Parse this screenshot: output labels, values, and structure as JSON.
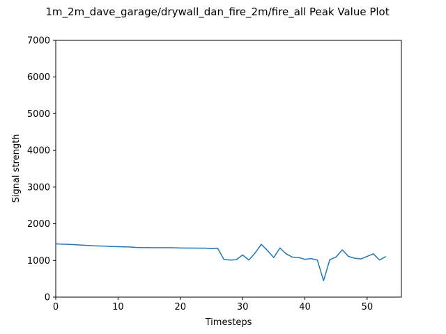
{
  "chart_data": {
    "type": "line",
    "title": "1m_2m_dave_garage/drywall_dan_fire_2m/fire_all Peak Value Plot",
    "xlabel": "Timesteps",
    "ylabel": "Signal strength",
    "xlim": [
      0,
      55.5
    ],
    "ylim": [
      0,
      7000
    ],
    "xticks": [
      0,
      10,
      20,
      30,
      40,
      50
    ],
    "yticks": [
      0,
      1000,
      2000,
      3000,
      4000,
      5000,
      6000,
      7000
    ],
    "grid": false,
    "legend": "none",
    "series": [
      {
        "color": "#1f77b4",
        "x": [
          0,
          1,
          2,
          3,
          4,
          5,
          6,
          7,
          8,
          9,
          10,
          11,
          12,
          13,
          14,
          15,
          16,
          17,
          18,
          19,
          20,
          21,
          22,
          23,
          24,
          25,
          26,
          27,
          28,
          29,
          30,
          31,
          32,
          33,
          34,
          35,
          36,
          37,
          38,
          39,
          40,
          41,
          42,
          43,
          44,
          45,
          46,
          47,
          48,
          49,
          50,
          51,
          52,
          53
        ],
        "y": [
          1450,
          1445,
          1440,
          1430,
          1420,
          1410,
          1400,
          1395,
          1390,
          1380,
          1375,
          1370,
          1365,
          1355,
          1350,
          1350,
          1348,
          1347,
          1346,
          1345,
          1340,
          1338,
          1337,
          1336,
          1335,
          1320,
          1330,
          1030,
          1010,
          1020,
          1150,
          1010,
          1200,
          1440,
          1270,
          1080,
          1340,
          1180,
          1090,
          1080,
          1030,
          1050,
          1010,
          450,
          1020,
          1090,
          1290,
          1110,
          1060,
          1040,
          1110,
          1180,
          1010,
          1110
        ]
      }
    ]
  }
}
